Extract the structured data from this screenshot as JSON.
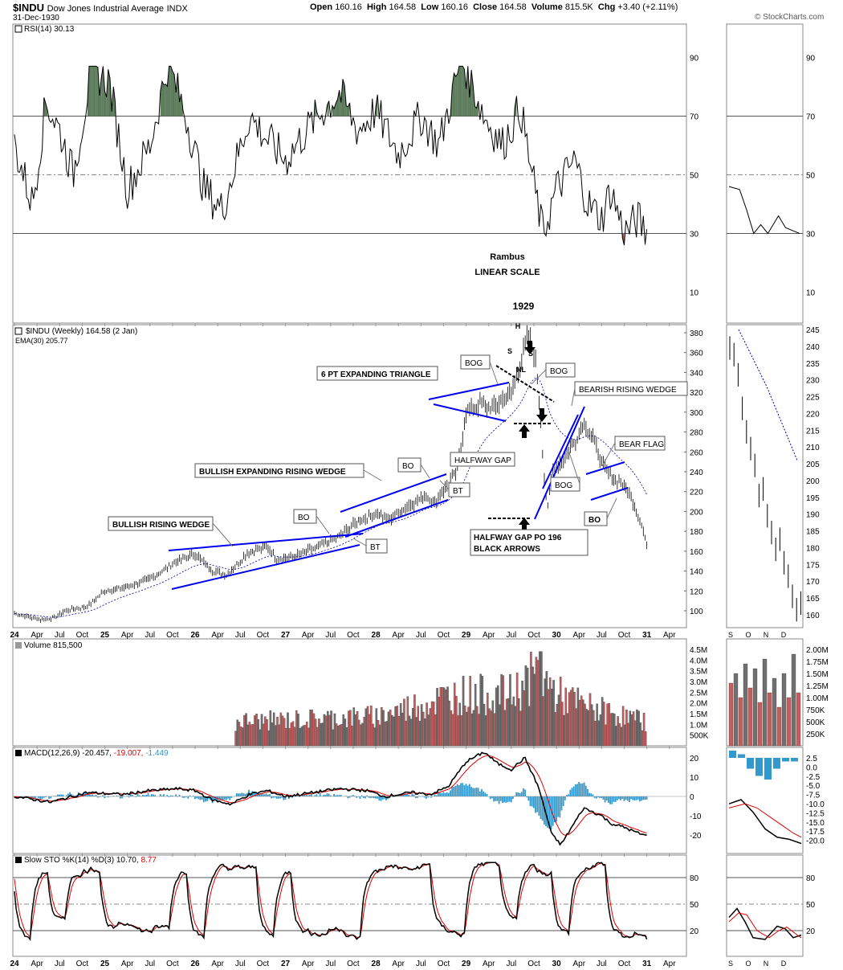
{
  "header": {
    "symbol": "$INDU",
    "name": "Dow Jones Industrial Average",
    "exchange": "INDX",
    "date": "31-Dec-1930",
    "open_label": "Open",
    "open": "160.16",
    "high_label": "High",
    "high": "164.58",
    "low_label": "Low",
    "low": "160.16",
    "close_label": "Close",
    "close": "164.58",
    "volume_label": "Volume",
    "volume": "815.5K",
    "chg_label": "Chg",
    "chg": "+3.40 (+2.11%)",
    "watermark": "© StockCharts.com"
  },
  "colors": {
    "price": "#000000",
    "ema": "#0000aa",
    "trendline": "#0000ee",
    "rsi_over": "#5a7a5a",
    "rsi_under": "#a05050",
    "vol_up": "#c06060",
    "vol_down": "#707070",
    "macd_hist": "#3399cc",
    "signal": "#dd0000",
    "pattern_text": "#0000cc"
  },
  "panels": {
    "rsi": {
      "legend": "RSI(14) 30.13",
      "ticks": [
        "90",
        "70",
        "50",
        "30",
        "10"
      ]
    },
    "price": {
      "legend": "$INDU (Weekly) 164.58 (2 Jan)",
      "ema_legend": "EMA(30) 205.77",
      "ticks": [
        "380",
        "360",
        "340",
        "320",
        "300",
        "280",
        "260",
        "240",
        "220",
        "200",
        "180",
        "160",
        "140",
        "120",
        "100"
      ],
      "right_ticks": [
        "245",
        "240",
        "235",
        "230",
        "225",
        "220",
        "215",
        "210",
        "205",
        "200",
        "195",
        "190",
        "185",
        "180",
        "175",
        "170",
        "165",
        "160"
      ]
    },
    "volume": {
      "legend": "Volume 815,500",
      "ticks": [
        "4.5M",
        "4.0M",
        "3.5M",
        "3.0M",
        "2.5M",
        "2.0M",
        "1.5M",
        "1.0M",
        "500K"
      ],
      "right_ticks": [
        "2.00M",
        "1.75M",
        "1.50M",
        "1.25M",
        "1.00M",
        "750K",
        "500K",
        "250K"
      ]
    },
    "macd": {
      "legend_prefix": "MACD(12,26,9)",
      "v1": "-20.457,",
      "v2": "-19.007,",
      "v3": "-1.449",
      "ticks": [
        "20",
        "10",
        "0",
        "-10",
        "-20"
      ],
      "right_ticks": [
        "2.5",
        "0.0",
        "-2.5",
        "-5.0",
        "-7.5",
        "-10.0",
        "-12.5",
        "-15.0",
        "-17.5",
        "-20.0"
      ]
    },
    "sto": {
      "legend_prefix": "Slow STO %K(14) %D(3)",
      "v1": "10.70,",
      "v2": "8.77",
      "ticks": [
        "80",
        "50",
        "20"
      ]
    }
  },
  "x_axis": {
    "labels": [
      "24",
      "Apr",
      "Jul",
      "Oct",
      "25",
      "Apr",
      "Jul",
      "Oct",
      "26",
      "Apr",
      "Jul",
      "Oct",
      "27",
      "Apr",
      "Jul",
      "Oct",
      "28",
      "Apr",
      "Jul",
      "Oct",
      "29",
      "Apr",
      "Jul",
      "Oct",
      "30",
      "Apr",
      "Jul",
      "Oct",
      "31",
      "Apr"
    ],
    "right_labels": [
      "S",
      "O",
      "N",
      "D"
    ]
  },
  "annotations": {
    "rambus": "Rambus",
    "linear_scale": "LINEAR SCALE",
    "year_1929": "1929",
    "h": "H",
    "s1": "S",
    "s2": "S",
    "nl": "NL",
    "bullish_rising_wedge": "BULLISH RISING WEDGE",
    "bullish_expanding_rising_wedge": "BULLISH EXPANDING RISING WEDGE",
    "six_pt_expanding_triangle": "6 PT EXPANDING TRIANGLE",
    "bearish_rising_wedge": "BEARISH RISING WEDGE",
    "bear_flag": "BEAR FLAG",
    "bog": "BOG",
    "bo": "BO",
    "bt": "BT",
    "halfway_gap": "HALFWAY GAP",
    "halfway_gap_po_line1": "HALFWAY GAP PO 196",
    "halfway_gap_po_line2": "BLACK ARROWS"
  },
  "chart_data": {
    "type": "line",
    "title": "$INDU (Weekly) 164.58 (2 Jan)",
    "x": [
      "1924-01",
      "1924-04",
      "1924-07",
      "1924-10",
      "1925-01",
      "1925-04",
      "1925-07",
      "1925-10",
      "1926-01",
      "1926-04",
      "1926-07",
      "1926-10",
      "1927-01",
      "1927-04",
      "1927-07",
      "1927-10",
      "1928-01",
      "1928-04",
      "1928-07",
      "1928-10",
      "1929-01",
      "1929-04",
      "1929-07",
      "1929-09",
      "1929-10",
      "1929-11",
      "1930-01",
      "1930-04",
      "1930-07",
      "1930-10",
      "1930-12"
    ],
    "series": [
      {
        "name": "$INDU",
        "values": [
          97,
          93,
          100,
          104,
          120,
          123,
          132,
          150,
          157,
          140,
          164,
          152,
          160,
          165,
          180,
          190,
          198,
          208,
          215,
          240,
          300,
          308,
          320,
          380,
          300,
          205,
          250,
          290,
          230,
          212,
          165
        ]
      },
      {
        "name": "EMA(30)",
        "values": [
          96,
          95,
          96,
          100,
          110,
          118,
          124,
          135,
          145,
          150,
          155,
          155,
          157,
          160,
          168,
          178,
          188,
          196,
          206,
          220,
          255,
          280,
          300,
          325,
          330,
          300,
          270,
          265,
          250,
          235,
          206
        ]
      }
    ],
    "rsi": {
      "name": "RSI(14)",
      "last": 30.13,
      "ylim": [
        0,
        100
      ]
    },
    "volume_last": 815500,
    "macd": {
      "macd": -20.457,
      "signal": -19.007,
      "hist": -1.449
    },
    "slow_sto": {
      "k": 10.7,
      "d": 8.77
    },
    "ylim": [
      90,
      390
    ]
  }
}
